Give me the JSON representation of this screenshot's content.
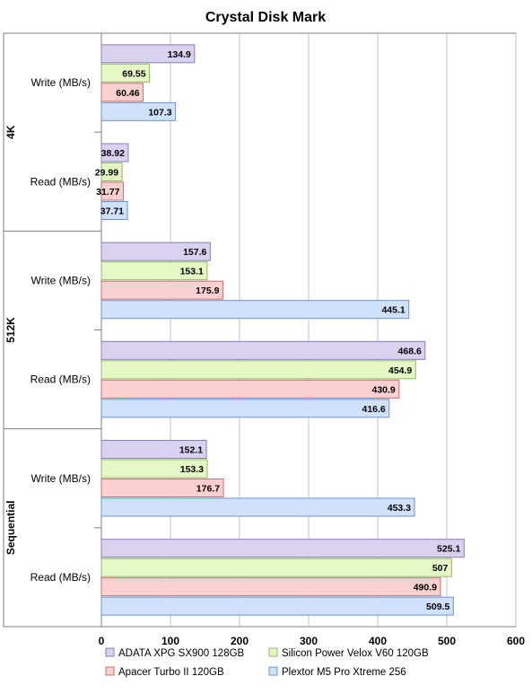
{
  "chart_data": {
    "type": "bar",
    "orientation": "horizontal",
    "title": "Crystal Disk Mark",
    "xlim": [
      0,
      600
    ],
    "x_ticks": [
      "0",
      "100",
      "200",
      "300",
      "400",
      "500",
      "600"
    ],
    "grid": true,
    "legend_position": "bottom",
    "groups": [
      {
        "label": "4K",
        "categories": [
          "Write (MB/s)",
          "Read (MB/s)"
        ]
      },
      {
        "label": "512K",
        "categories": [
          "Write (MB/s)",
          "Read (MB/s)"
        ]
      },
      {
        "label": "Sequential",
        "categories": [
          "Write (MB/s)",
          "Read (MB/s)"
        ]
      }
    ],
    "series": [
      {
        "name": "ADATA XPG SX900 128GB",
        "color": "#d9d1f0",
        "border": "#8a7fb0",
        "values": [
          [
            134.9,
            38.92
          ],
          [
            157.6,
            468.6
          ],
          [
            152.1,
            525.1
          ]
        ],
        "labels": [
          [
            "134.9",
            "38.92"
          ],
          [
            "157.6",
            "468.6"
          ],
          [
            "152.1",
            "525.1"
          ]
        ]
      },
      {
        "name": "Silicon Power Velox V60 120GB",
        "color": "#e4f7c4",
        "border": "#93b868",
        "values": [
          [
            69.55,
            29.99
          ],
          [
            153.1,
            454.9
          ],
          [
            153.3,
            507
          ]
        ],
        "labels": [
          [
            "69.55",
            "29.99"
          ],
          [
            "153.1",
            "454.9"
          ],
          [
            "153.3",
            "507"
          ]
        ]
      },
      {
        "name": "Apacer Turbo II 120GB",
        "color": "#fad0d0",
        "border": "#c97070",
        "values": [
          [
            60.46,
            31.77
          ],
          [
            175.9,
            430.9
          ],
          [
            176.7,
            490.9
          ]
        ],
        "labels": [
          [
            "60.46",
            "31.77"
          ],
          [
            "175.9",
            "430.9"
          ],
          [
            "176.7",
            "490.9"
          ]
        ]
      },
      {
        "name": "Plextor M5 Pro Xtreme 256",
        "color": "#cfe1fb",
        "border": "#6f93c8",
        "values": [
          [
            107.3,
            37.71
          ],
          [
            445.1,
            416.6
          ],
          [
            453.3,
            509.5
          ]
        ],
        "labels": [
          [
            "107.3",
            "37.71"
          ],
          [
            "445.1",
            "416.6"
          ],
          [
            "453.3",
            "509.5"
          ]
        ]
      }
    ]
  }
}
